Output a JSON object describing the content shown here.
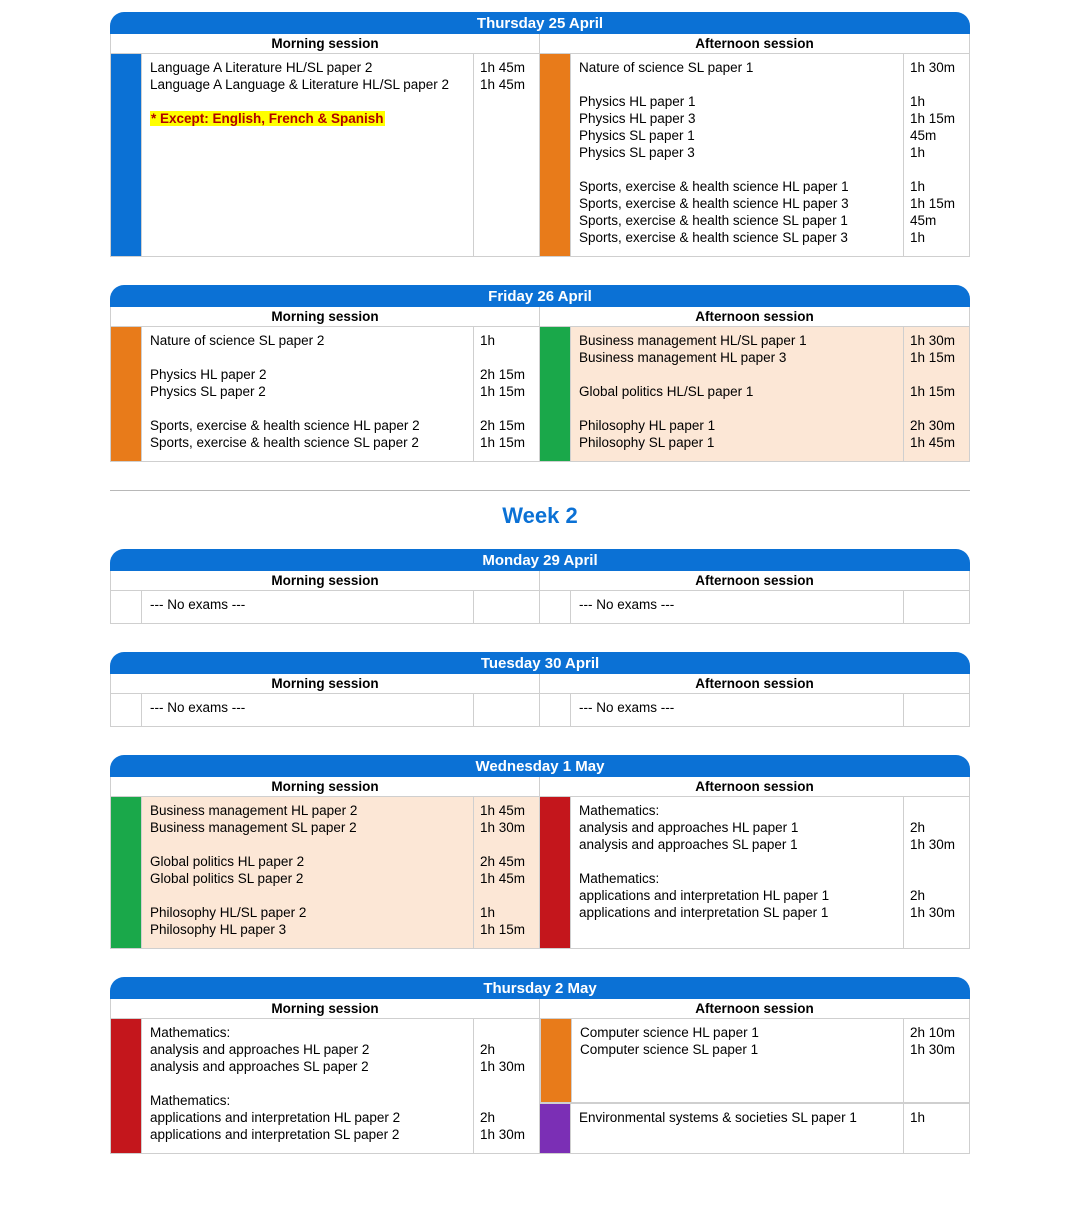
{
  "colors": {
    "header_blue": "#0b71d5",
    "highlight_yellow": "#ffff00",
    "highlight_text": "#b00000",
    "bg_peach": "#fce7d6",
    "bg_white": "#ffffff",
    "strip_blue": "#0b71d5",
    "strip_orange": "#e87b1a",
    "strip_green": "#1aa84a",
    "strip_red": "#c4161c",
    "strip_purple": "#7b2fb5",
    "border": "#cfcfcf"
  },
  "labels": {
    "morning": "Morning session",
    "afternoon": "Afternoon session",
    "week2": "Week 2",
    "no_exams": "--- No exams ---"
  },
  "days": [
    {
      "title": "Thursday 25 April",
      "morning": {
        "strip_color": "#0b71d5",
        "bg": "bg-white",
        "segments": [
          {
            "exams": [
              {
                "name": "Language A Literature HL/SL paper 2",
                "dur": "1h 45m"
              },
              {
                "name": "Language A Language & Literature HL/SL paper 2",
                "dur": "1h 45m"
              }
            ],
            "note": "* Except: English, French & Spanish"
          }
        ]
      },
      "afternoon": {
        "strip_color": "#e87b1a",
        "bg": "bg-white",
        "segments": [
          {
            "exams": [
              {
                "name": "Nature of science SL paper 1",
                "dur": "1h 30m"
              },
              {
                "name": "",
                "dur": ""
              },
              {
                "name": "Physics HL paper 1",
                "dur": "1h"
              },
              {
                "name": "Physics HL paper 3",
                "dur": "1h 15m"
              },
              {
                "name": "Physics SL paper 1",
                "dur": "45m"
              },
              {
                "name": "Physics SL paper 3",
                "dur": "1h"
              },
              {
                "name": "",
                "dur": ""
              },
              {
                "name": "Sports, exercise & health science HL paper 1",
                "dur": "1h"
              },
              {
                "name": "Sports, exercise & health science HL paper 3",
                "dur": "1h 15m"
              },
              {
                "name": "Sports, exercise & health science SL paper 1",
                "dur": "45m"
              },
              {
                "name": "Sports, exercise & health science SL paper 3",
                "dur": "1h"
              }
            ]
          }
        ]
      }
    },
    {
      "title": "Friday 26 April",
      "morning": {
        "strip_color": "#e87b1a",
        "bg": "bg-white",
        "segments": [
          {
            "exams": [
              {
                "name": "Nature of science SL paper 2",
                "dur": "1h"
              },
              {
                "name": "",
                "dur": ""
              },
              {
                "name": "Physics HL paper 2",
                "dur": "2h 15m"
              },
              {
                "name": "Physics SL paper 2",
                "dur": "1h 15m"
              },
              {
                "name": "",
                "dur": ""
              },
              {
                "name": "Sports, exercise & health science HL paper 2",
                "dur": "2h 15m"
              },
              {
                "name": "Sports, exercise & health science SL paper 2",
                "dur": "1h 15m"
              }
            ]
          }
        ]
      },
      "afternoon": {
        "strip_color": "#1aa84a",
        "bg": "bg-peach",
        "segments": [
          {
            "exams": [
              {
                "name": "Business management HL/SL paper 1",
                "dur": "1h 30m"
              },
              {
                "name": "Business management HL paper 3",
                "dur": "1h 15m"
              },
              {
                "name": "",
                "dur": ""
              },
              {
                "name": "Global politics HL/SL paper 1",
                "dur": "1h 15m"
              },
              {
                "name": "",
                "dur": ""
              },
              {
                "name": "Philosophy HL paper 1",
                "dur": "2h 30m"
              },
              {
                "name": "Philosophy SL paper 1",
                "dur": "1h 45m"
              }
            ]
          }
        ]
      }
    },
    {
      "title": "Monday 29 April",
      "morning": {
        "no_exams": true
      },
      "afternoon": {
        "no_exams": true
      }
    },
    {
      "title": "Tuesday 30 April",
      "morning": {
        "no_exams": true
      },
      "afternoon": {
        "no_exams": true
      }
    },
    {
      "title": "Wednesday 1 May",
      "morning": {
        "strip_color": "#1aa84a",
        "bg": "bg-peach",
        "segments": [
          {
            "exams": [
              {
                "name": "Business management HL paper 2",
                "dur": "1h 45m"
              },
              {
                "name": "Business management SL paper 2",
                "dur": "1h 30m"
              },
              {
                "name": "",
                "dur": ""
              },
              {
                "name": "Global politics HL paper 2",
                "dur": "2h 45m"
              },
              {
                "name": "Global politics SL paper 2",
                "dur": "1h 45m"
              },
              {
                "name": "",
                "dur": ""
              },
              {
                "name": "Philosophy HL/SL paper 2",
                "dur": "1h"
              },
              {
                "name": "Philosophy HL paper 3",
                "dur": "1h 15m"
              }
            ]
          }
        ]
      },
      "afternoon": {
        "strip_color": "#c4161c",
        "bg": "bg-white",
        "segments": [
          {
            "exams": [
              {
                "name": "Mathematics:",
                "dur": ""
              },
              {
                "name": "analysis and approaches HL paper 1",
                "dur": "2h"
              },
              {
                "name": "analysis and approaches SL paper 1",
                "dur": "1h 30m"
              },
              {
                "name": "",
                "dur": ""
              },
              {
                "name": "Mathematics:",
                "dur": ""
              },
              {
                "name": "applications and interpretation HL paper 1",
                "dur": "2h"
              },
              {
                "name": "applications and interpretation SL paper 1",
                "dur": "1h 30m"
              }
            ]
          }
        ]
      }
    },
    {
      "title": "Thursday 2 May",
      "morning": {
        "strip_color": "#c4161c",
        "bg": "bg-white",
        "segments": [
          {
            "exams": [
              {
                "name": "Mathematics:",
                "dur": ""
              },
              {
                "name": "analysis and approaches HL paper 2",
                "dur": "2h"
              },
              {
                "name": "analysis and approaches SL paper 2",
                "dur": "1h 30m"
              },
              {
                "name": "",
                "dur": ""
              },
              {
                "name": "Mathematics:",
                "dur": ""
              },
              {
                "name": "applications and interpretation HL paper 2",
                "dur": "2h"
              },
              {
                "name": "applications and interpretation SL paper 2",
                "dur": "1h 30m"
              }
            ]
          }
        ]
      },
      "afternoon": {
        "multi": true,
        "segments": [
          {
            "strip_color": "#e87b1a",
            "bg": "bg-white",
            "exams": [
              {
                "name": "Computer science HL paper 1",
                "dur": "2h 10m"
              },
              {
                "name": "Computer science SL paper 1",
                "dur": "1h 30m"
              },
              {
                "name": "",
                "dur": ""
              },
              {
                "name": "",
                "dur": ""
              }
            ]
          },
          {
            "strip_color": "#7b2fb5",
            "bg": "bg-white",
            "exams": [
              {
                "name": "Environmental systems & societies SL paper 1",
                "dur": "1h"
              },
              {
                "name": "",
                "dur": ""
              }
            ]
          }
        ]
      }
    }
  ],
  "week_break_after_index": 1
}
